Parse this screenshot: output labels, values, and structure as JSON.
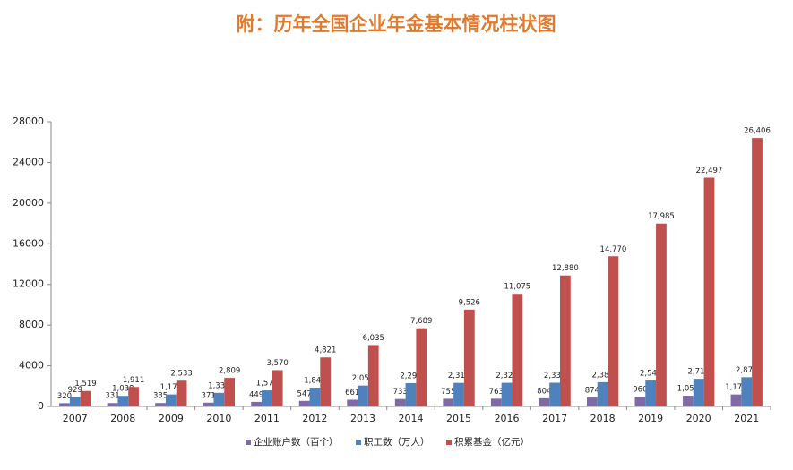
{
  "chart_data": {
    "type": "bar",
    "title": "附：历年全国企业年金基本情况柱状图",
    "categories": [
      "2007",
      "2008",
      "2009",
      "2010",
      "2011",
      "2012",
      "2013",
      "2014",
      "2015",
      "2016",
      "2017",
      "2018",
      "2019",
      "2020",
      "2021"
    ],
    "series": [
      {
        "name": "企业账户数（百个）",
        "color": "#7f6aa6",
        "values": [
          320,
          331,
          335,
          371,
          449,
          547,
          661,
          733,
          755,
          763,
          804,
          874,
          960,
          1052,
          1175
        ],
        "value_labels": [
          "320",
          "331",
          "335",
          "371",
          "449",
          "547",
          "661",
          "733",
          "755",
          "763",
          "804",
          "874",
          "960",
          "1,052",
          "1,175"
        ]
      },
      {
        "name": "职工数（万人）",
        "color": "#4f81bd",
        "values": [
          929,
          1038,
          1179,
          1335,
          1577,
          1847,
          2056,
          2293,
          2316,
          2325,
          2331,
          2388,
          2548,
          2718,
          2875
        ],
        "value_labels": [
          "929",
          "1,038",
          "1,179",
          "1,335",
          "1,577",
          "1,847",
          "2,056",
          "2,293",
          "2,316",
          "2,325",
          "2,331",
          "2,388",
          "2,548",
          "2,718",
          "2,875"
        ]
      },
      {
        "name": "积累基金（亿元）",
        "color": "#c0504d",
        "values": [
          1519,
          1911,
          2533,
          2809,
          3570,
          4821,
          6035,
          7689,
          9526,
          11075,
          12880,
          14770,
          17985,
          22497,
          26406
        ],
        "value_labels": [
          "1,519",
          "1,911",
          "2,533",
          "2,809",
          "3,570",
          "4,821",
          "6,035",
          "7,689",
          "9,526",
          "11,075",
          "12,880",
          "14,770",
          "17,985",
          "22,497",
          "26,406"
        ]
      }
    ],
    "ylim": [
      0,
      28000
    ],
    "yticks": [
      0,
      4000,
      8000,
      12000,
      16000,
      20000,
      24000,
      28000
    ],
    "legend": "bottom"
  }
}
